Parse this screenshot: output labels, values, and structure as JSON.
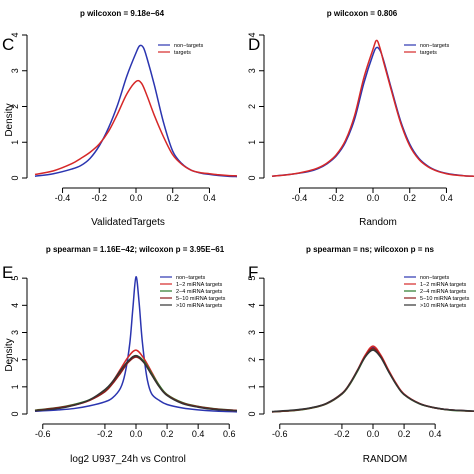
{
  "chart_data": [
    {
      "type": "line",
      "panel": "C",
      "title": "p wilcoxon  =  9.18e−64",
      "xlabel": "ValidatedTargets",
      "ylabel": "Density",
      "xlim": [
        -0.55,
        0.55
      ],
      "ylim": [
        0,
        4
      ],
      "xticks": [
        "-0.4",
        "-0.2",
        "0.0",
        "0.2",
        "0.4"
      ],
      "xtick_values": [
        -0.4,
        -0.2,
        0.0,
        0.2,
        0.4
      ],
      "yticks": [
        "0",
        "1",
        "2",
        "3",
        "4"
      ],
      "ytick_values": [
        0,
        1,
        2,
        3,
        4
      ],
      "legend": "top-right",
      "series": [
        {
          "name": "non−targets",
          "color": "#2b35b0",
          "x": [
            -0.55,
            -0.45,
            -0.35,
            -0.3,
            -0.25,
            -0.2,
            -0.15,
            -0.1,
            -0.05,
            0.0,
            0.02,
            0.04,
            0.06,
            0.1,
            0.15,
            0.2,
            0.25,
            0.3,
            0.35,
            0.4,
            0.45,
            0.5,
            0.55
          ],
          "y": [
            0.05,
            0.12,
            0.25,
            0.35,
            0.55,
            0.9,
            1.4,
            2.05,
            2.85,
            3.5,
            3.7,
            3.65,
            3.35,
            2.6,
            1.55,
            0.75,
            0.4,
            0.22,
            0.14,
            0.1,
            0.07,
            0.05,
            0.04
          ]
        },
        {
          "name": "targets",
          "color": "#d62828",
          "x": [
            -0.55,
            -0.45,
            -0.35,
            -0.3,
            -0.25,
            -0.2,
            -0.15,
            -0.1,
            -0.05,
            0.0,
            0.03,
            0.06,
            0.1,
            0.15,
            0.2,
            0.25,
            0.3,
            0.35,
            0.4,
            0.45,
            0.5,
            0.55
          ],
          "y": [
            0.1,
            0.2,
            0.4,
            0.55,
            0.72,
            0.95,
            1.3,
            1.8,
            2.35,
            2.7,
            2.65,
            2.3,
            1.75,
            1.15,
            0.65,
            0.38,
            0.22,
            0.15,
            0.12,
            0.09,
            0.07,
            0.06
          ]
        }
      ]
    },
    {
      "type": "line",
      "panel": "D",
      "title": "p wilcoxon  =  0.806",
      "xlabel": "Random",
      "ylabel": "",
      "xlim": [
        -0.55,
        0.55
      ],
      "ylim": [
        0,
        4
      ],
      "xticks": [
        "-0.4",
        "-0.2",
        "0.0",
        "0.2",
        "0.4"
      ],
      "xtick_values": [
        -0.4,
        -0.2,
        0.0,
        0.2,
        0.4
      ],
      "yticks": [
        "0",
        "1",
        "2",
        "3",
        "4"
      ],
      "ytick_values": [
        0,
        1,
        2,
        3,
        4
      ],
      "legend": "top-right",
      "series": [
        {
          "name": "non−targets",
          "color": "#2b35b0",
          "x": [
            -0.55,
            -0.45,
            -0.35,
            -0.3,
            -0.25,
            -0.2,
            -0.15,
            -0.1,
            -0.05,
            0.0,
            0.02,
            0.04,
            0.06,
            0.1,
            0.15,
            0.2,
            0.25,
            0.3,
            0.35,
            0.4,
            0.45,
            0.5,
            0.55
          ],
          "y": [
            0.05,
            0.1,
            0.18,
            0.26,
            0.4,
            0.62,
            1.0,
            1.65,
            2.65,
            3.45,
            3.65,
            3.55,
            3.25,
            2.5,
            1.6,
            0.95,
            0.55,
            0.33,
            0.2,
            0.13,
            0.09,
            0.06,
            0.05
          ]
        },
        {
          "name": "targets",
          "color": "#d62828",
          "x": [
            -0.55,
            -0.45,
            -0.35,
            -0.3,
            -0.25,
            -0.2,
            -0.15,
            -0.1,
            -0.05,
            0.0,
            0.02,
            0.04,
            0.06,
            0.1,
            0.15,
            0.2,
            0.25,
            0.3,
            0.35,
            0.4,
            0.45,
            0.5,
            0.55
          ],
          "y": [
            0.05,
            0.1,
            0.2,
            0.28,
            0.42,
            0.65,
            1.05,
            1.75,
            2.8,
            3.6,
            3.85,
            3.6,
            3.2,
            2.45,
            1.55,
            0.9,
            0.52,
            0.31,
            0.19,
            0.12,
            0.08,
            0.06,
            0.05
          ]
        }
      ]
    },
    {
      "type": "line",
      "panel": "E",
      "title": "p spearman = 1.16E−42; wilcoxon p = 3.95E−61",
      "xlabel": "log2 U937_24h vs Control",
      "ylabel": "Density",
      "xlim": [
        -0.65,
        0.65
      ],
      "ylim": [
        0,
        5.3
      ],
      "xticks": [
        "-0.6",
        "-0.2",
        "0.0",
        "0.2",
        "0.4",
        "0.6"
      ],
      "xtick_values": [
        -0.6,
        -0.2,
        0.0,
        0.2,
        0.4,
        0.6
      ],
      "yticks": [
        "0",
        "1",
        "2",
        "3",
        "4",
        "5"
      ],
      "ytick_values": [
        0,
        1,
        2,
        3,
        4,
        5
      ],
      "legend": "top-right",
      "series": [
        {
          "name": "non−targets",
          "color": "#2b35b0",
          "x": [
            -0.65,
            -0.5,
            -0.4,
            -0.3,
            -0.2,
            -0.15,
            -0.1,
            -0.07,
            -0.04,
            -0.02,
            0.0,
            0.02,
            0.04,
            0.07,
            0.1,
            0.15,
            0.2,
            0.3,
            0.4,
            0.5,
            0.65
          ],
          "y": [
            0.1,
            0.15,
            0.2,
            0.3,
            0.45,
            0.6,
            0.95,
            1.5,
            2.6,
            3.9,
            5.05,
            4.1,
            2.7,
            1.35,
            0.75,
            0.5,
            0.35,
            0.22,
            0.15,
            0.11,
            0.08
          ]
        },
        {
          "name": "1−2 miRNA targets",
          "color": "#d62828",
          "x": [
            -0.65,
            -0.5,
            -0.4,
            -0.3,
            -0.2,
            -0.15,
            -0.1,
            -0.05,
            0.0,
            0.05,
            0.1,
            0.15,
            0.2,
            0.3,
            0.4,
            0.5,
            0.65
          ],
          "y": [
            0.12,
            0.22,
            0.32,
            0.5,
            0.85,
            1.2,
            1.65,
            2.1,
            2.35,
            2.05,
            1.55,
            1.05,
            0.7,
            0.4,
            0.26,
            0.18,
            0.12
          ]
        },
        {
          "name": "2−4 miRNA targets",
          "color": "#2a7a2a",
          "x": [
            -0.65,
            -0.5,
            -0.4,
            -0.3,
            -0.2,
            -0.15,
            -0.1,
            -0.05,
            0.0,
            0.05,
            0.1,
            0.15,
            0.2,
            0.3,
            0.4,
            0.5,
            0.65
          ],
          "y": [
            0.14,
            0.24,
            0.35,
            0.52,
            0.85,
            1.15,
            1.55,
            1.95,
            2.15,
            1.95,
            1.5,
            1.05,
            0.72,
            0.42,
            0.28,
            0.2,
            0.13
          ]
        },
        {
          "name": "5−10 miRNA targets",
          "color": "#8b1a1a",
          "x": [
            -0.65,
            -0.5,
            -0.4,
            -0.3,
            -0.2,
            -0.15,
            -0.1,
            -0.05,
            0.0,
            0.05,
            0.1,
            0.15,
            0.2,
            0.3,
            0.4,
            0.5,
            0.65
          ],
          "y": [
            0.13,
            0.23,
            0.33,
            0.5,
            0.82,
            1.12,
            1.5,
            1.9,
            2.1,
            1.9,
            1.45,
            1.0,
            0.7,
            0.4,
            0.27,
            0.19,
            0.13
          ]
        },
        {
          "name": ">10 miRNA targets",
          "color": "#333333",
          "x": [
            -0.65,
            -0.5,
            -0.4,
            -0.3,
            -0.2,
            -0.15,
            -0.1,
            -0.05,
            0.0,
            0.05,
            0.1,
            0.15,
            0.2,
            0.3,
            0.4,
            0.5,
            0.65
          ],
          "y": [
            0.12,
            0.2,
            0.32,
            0.52,
            0.9,
            1.2,
            1.6,
            1.95,
            2.15,
            1.9,
            1.45,
            1.0,
            0.68,
            0.38,
            0.25,
            0.17,
            0.12
          ]
        }
      ]
    },
    {
      "type": "line",
      "panel": "F",
      "title": "p spearman = ns; wilcoxon p = ns",
      "xlabel": "RANDOM",
      "ylabel": "",
      "xlim": [
        -0.65,
        0.65
      ],
      "ylim": [
        0,
        5.3
      ],
      "xticks": [
        "-0.6",
        "-0.2",
        "0.0",
        "0.2",
        "0.4"
      ],
      "xtick_values": [
        -0.6,
        -0.2,
        0.0,
        0.2,
        0.4
      ],
      "yticks": [
        "0",
        "1",
        "2",
        "3",
        "4",
        "5"
      ],
      "ytick_values": [
        0,
        1,
        2,
        3,
        4,
        5
      ],
      "legend": "top-right",
      "series": [
        {
          "name": "non−targets",
          "color": "#2b35b0",
          "x": [
            -0.65,
            -0.5,
            -0.4,
            -0.3,
            -0.2,
            -0.15,
            -0.1,
            -0.05,
            0.0,
            0.05,
            0.1,
            0.15,
            0.2,
            0.3,
            0.4,
            0.5,
            0.65
          ],
          "y": [
            0.08,
            0.14,
            0.22,
            0.38,
            0.75,
            1.1,
            1.6,
            2.15,
            2.45,
            2.15,
            1.6,
            1.1,
            0.72,
            0.38,
            0.22,
            0.15,
            0.1
          ]
        },
        {
          "name": "1−2 miRNA targets",
          "color": "#d62828",
          "x": [
            -0.65,
            -0.5,
            -0.4,
            -0.3,
            -0.2,
            -0.15,
            -0.1,
            -0.05,
            0.0,
            0.05,
            0.1,
            0.15,
            0.2,
            0.3,
            0.4,
            0.5,
            0.65
          ],
          "y": [
            0.08,
            0.14,
            0.22,
            0.39,
            0.76,
            1.12,
            1.62,
            2.17,
            2.5,
            2.17,
            1.62,
            1.12,
            0.74,
            0.39,
            0.23,
            0.15,
            0.1
          ]
        },
        {
          "name": "2−4 miRNA targets",
          "color": "#2a7a2a",
          "x": [
            -0.65,
            -0.5,
            -0.4,
            -0.3,
            -0.2,
            -0.15,
            -0.1,
            -0.05,
            0.0,
            0.05,
            0.1,
            0.15,
            0.2,
            0.3,
            0.4,
            0.5,
            0.65
          ],
          "y": [
            0.08,
            0.13,
            0.21,
            0.37,
            0.73,
            1.08,
            1.57,
            2.1,
            2.4,
            2.1,
            1.57,
            1.08,
            0.71,
            0.37,
            0.22,
            0.14,
            0.1
          ]
        },
        {
          "name": "5−10 miRNA targets",
          "color": "#8b1a1a",
          "x": [
            -0.65,
            -0.5,
            -0.4,
            -0.3,
            -0.2,
            -0.15,
            -0.1,
            -0.05,
            0.0,
            0.05,
            0.1,
            0.15,
            0.2,
            0.3,
            0.4,
            0.5,
            0.65
          ],
          "y": [
            0.08,
            0.14,
            0.22,
            0.38,
            0.74,
            1.1,
            1.6,
            2.12,
            2.42,
            2.12,
            1.58,
            1.09,
            0.72,
            0.38,
            0.22,
            0.15,
            0.1
          ]
        },
        {
          "name": ">10 miRNA targets",
          "color": "#333333",
          "x": [
            -0.65,
            -0.5,
            -0.4,
            -0.3,
            -0.2,
            -0.15,
            -0.1,
            -0.05,
            0.0,
            0.05,
            0.1,
            0.15,
            0.2,
            0.3,
            0.4,
            0.5,
            0.65
          ],
          "y": [
            0.09,
            0.15,
            0.23,
            0.39,
            0.75,
            1.11,
            1.6,
            2.1,
            2.35,
            2.08,
            1.56,
            1.08,
            0.72,
            0.38,
            0.23,
            0.15,
            0.11
          ]
        }
      ]
    }
  ]
}
